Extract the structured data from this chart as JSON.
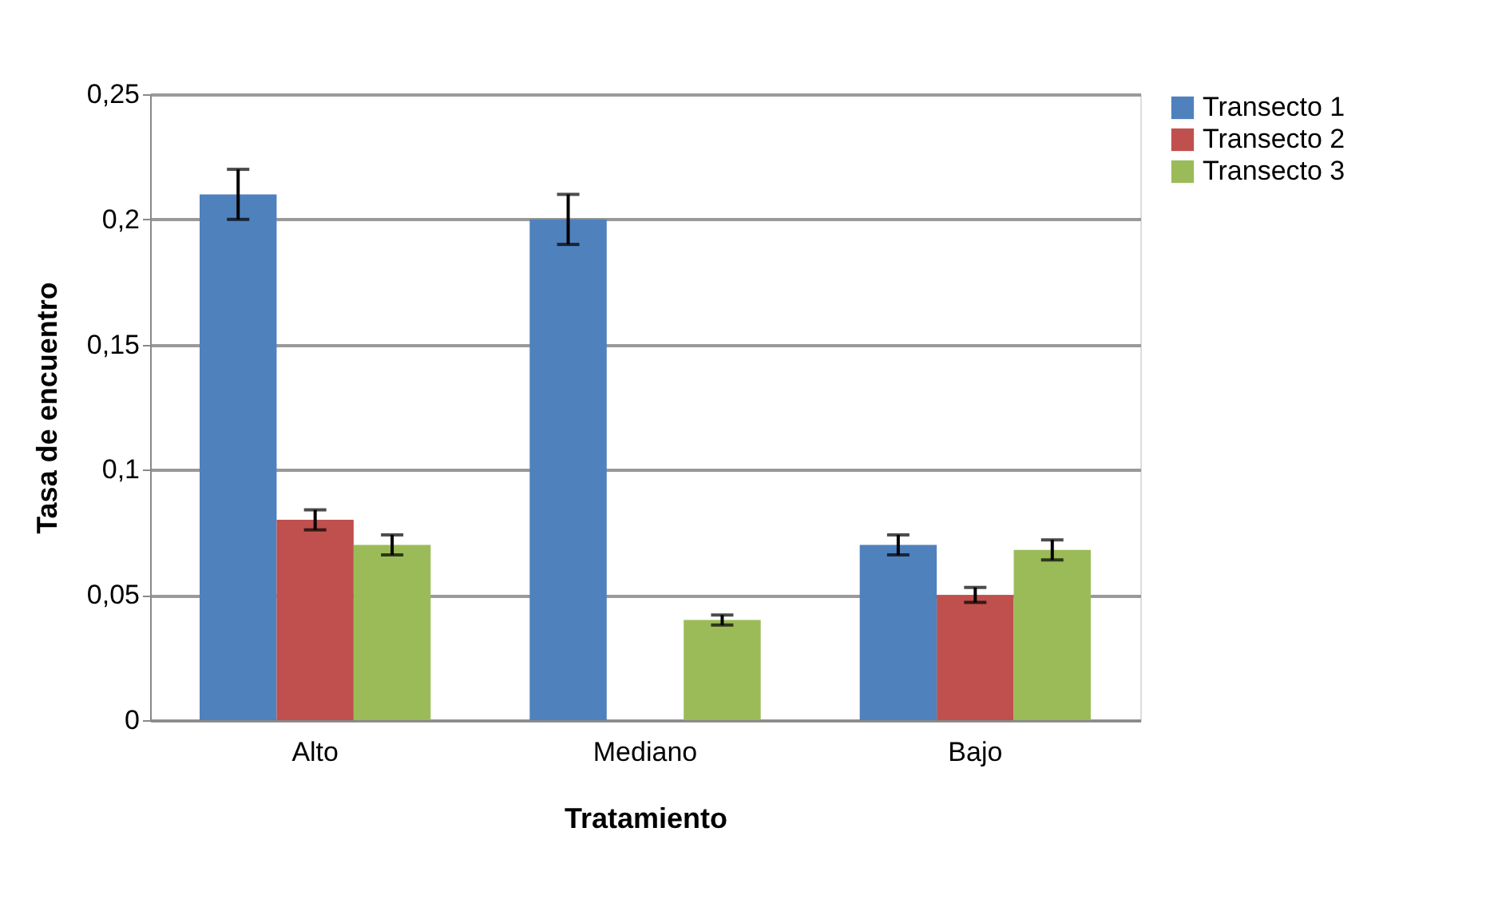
{
  "chart_data": {
    "type": "bar",
    "xlabel": "Tratamiento",
    "ylabel": "Tasa de encuentro",
    "categories": [
      "Alto",
      "Mediano",
      "Bajo"
    ],
    "series": [
      {
        "name": "Transecto 1",
        "color": "#4f81bd",
        "values": [
          0.21,
          0.2,
          0.07
        ],
        "errors": [
          0.01,
          0.01,
          0.004
        ]
      },
      {
        "name": "Transecto 2",
        "color": "#c0504d",
        "values": [
          0.08,
          0,
          0.05
        ],
        "errors": [
          0.004,
          null,
          0.003
        ]
      },
      {
        "name": "Transecto 3",
        "color": "#9bbb59",
        "values": [
          0.07,
          0.04,
          0.068
        ],
        "errors": [
          0.004,
          0.002,
          0.004
        ]
      }
    ],
    "ylim": [
      0,
      0.25
    ],
    "yticks": [
      {
        "value": 0,
        "label": "0"
      },
      {
        "value": 0.05,
        "label": "0,05"
      },
      {
        "value": 0.1,
        "label": "0,1"
      },
      {
        "value": 0.15,
        "label": "0,15"
      },
      {
        "value": 0.2,
        "label": "0,2"
      },
      {
        "value": 0.25,
        "label": "0,25"
      }
    ],
    "grid": "y",
    "legend": "right"
  }
}
